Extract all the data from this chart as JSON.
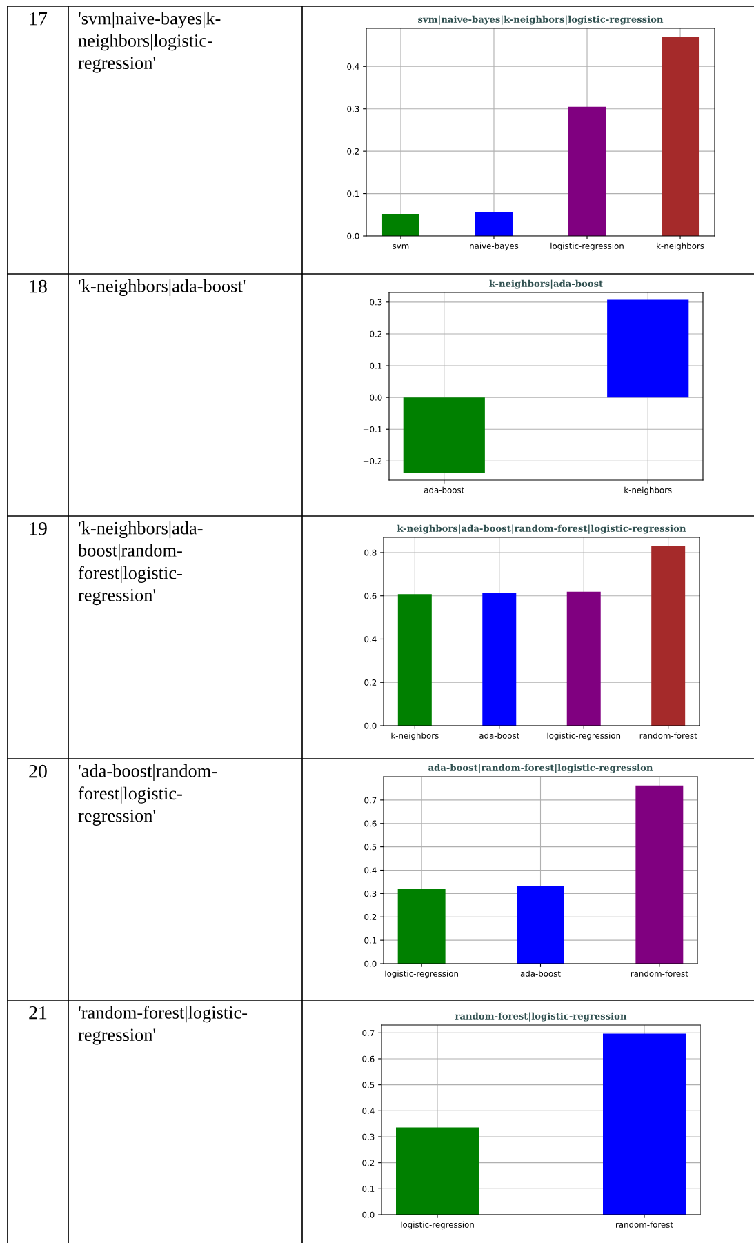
{
  "chart_data": [
    {
      "type": "bar",
      "title": "svm|naive-bayes|k-neighbors|logistic-regression",
      "categories": [
        "svm",
        "naive-bayes",
        "logistic-regression",
        "k-neighbors"
      ],
      "values": [
        0.052,
        0.056,
        0.305,
        0.469
      ],
      "colors": [
        "#008000",
        "#0000ff",
        "#800080",
        "#a52a2a"
      ],
      "ylim": [
        0,
        0.49
      ],
      "yticks": [
        {
          "value": 0,
          "label": "0.0"
        },
        0.1,
        0.2,
        0.3,
        0.4
      ],
      "grid": true,
      "annotations": [
        "17",
        "'svm|naive-bayes|k-\nneighbors|logistic-\nregression'"
      ]
    },
    {
      "type": "bar",
      "title": "k-neighbors|ada-boost",
      "categories": [
        "ada-boost",
        "k-neighbors"
      ],
      "values": [
        -0.236,
        0.307
      ],
      "colors": [
        "#008000",
        "#0000ff"
      ],
      "ylim": [
        -0.26,
        0.33
      ],
      "yticks": [
        {
          "value": -0.2,
          "label": "−0.2"
        },
        {
          "value": -0.1,
          "label": "−0.1"
        },
        {
          "value": 0,
          "label": "0.0"
        },
        0.1,
        0.2,
        0.3
      ],
      "grid": true,
      "annotations": [
        "18",
        "'k-neighbors|ada-boost'"
      ]
    },
    {
      "type": "bar",
      "title": "k-neighbors|ada-boost|random-forest|logistic-regression",
      "categories": [
        "k-neighbors",
        "ada-boost",
        "logistic-regression",
        "random-forest"
      ],
      "values": [
        0.608,
        0.615,
        0.619,
        0.831
      ],
      "colors": [
        "#008000",
        "#0000ff",
        "#800080",
        "#a52a2a"
      ],
      "ylim": [
        0,
        0.87
      ],
      "yticks": [
        {
          "value": 0,
          "label": "0.0"
        },
        0.2,
        0.4,
        0.6,
        0.8
      ],
      "grid": true,
      "annotations": [
        "19",
        "'k-neighbors|ada-\nboost|random-\nforest|logistic-\nregression'"
      ]
    },
    {
      "type": "bar",
      "title": "ada-boost|random-forest|logistic-regression",
      "categories": [
        "logistic-regression",
        "ada-boost",
        "random-forest"
      ],
      "values": [
        0.319,
        0.331,
        0.762
      ],
      "colors": [
        "#008000",
        "#0000ff",
        "#800080"
      ],
      "ylim": [
        0,
        0.8
      ],
      "yticks": [
        {
          "value": 0,
          "label": "0.0"
        },
        0.1,
        0.2,
        0.3,
        0.4,
        0.5,
        0.6,
        0.7
      ],
      "grid": true,
      "annotations": [
        "20",
        "'ada-boost|random-\nforest|logistic-\nregression'"
      ]
    },
    {
      "type": "bar",
      "title": "random-forest|logistic-regression",
      "categories": [
        "logistic-regression",
        "random-forest"
      ],
      "values": [
        0.336,
        0.697
      ],
      "colors": [
        "#008000",
        "#0000ff"
      ],
      "ylim": [
        0,
        0.73
      ],
      "yticks": [
        {
          "value": 0,
          "label": "0.0"
        },
        0.1,
        0.2,
        0.3,
        0.4,
        0.5,
        0.6,
        0.7
      ],
      "grid": true,
      "annotations": [
        "21",
        "'random-forest|logistic-\nregression'"
      ]
    }
  ]
}
